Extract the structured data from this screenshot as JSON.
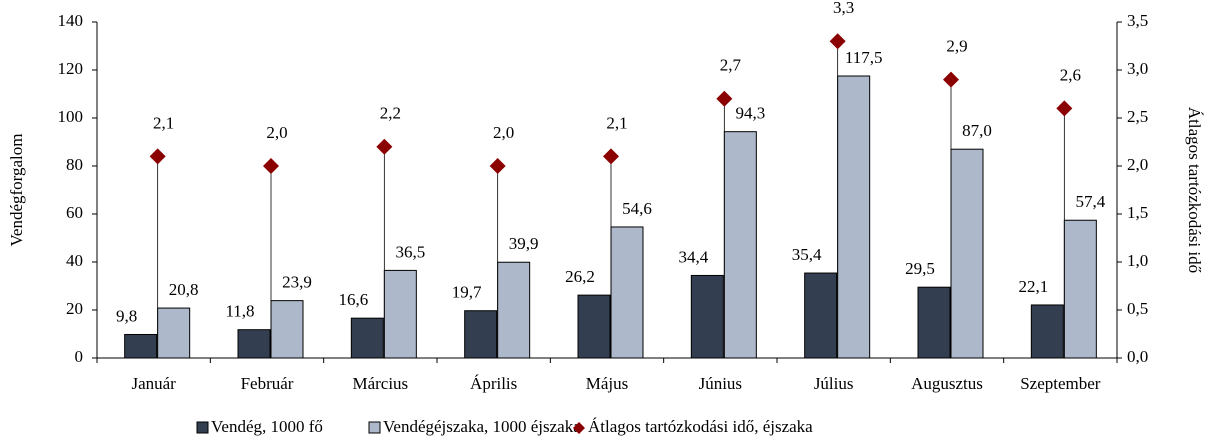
{
  "chart_data": {
    "type": "bar",
    "categories": [
      "Január",
      "Február",
      "Március",
      "Április",
      "Május",
      "Június",
      "Július",
      "Augusztus",
      "Szeptember"
    ],
    "series": [
      {
        "name": "Vendég, 1000 fő",
        "color": "#333f50",
        "values": [
          9.8,
          11.8,
          16.6,
          19.7,
          26.2,
          34.4,
          35.4,
          29.5,
          22.1
        ],
        "value_labels": [
          "9,8",
          "11,8",
          "16,6",
          "19,7",
          "26,2",
          "34,4",
          "35,4",
          "29,5",
          "22,1"
        ]
      },
      {
        "name": "Vendégéjszaka, 1000 éjszaka",
        "color": "#adb9ca",
        "values": [
          20.8,
          23.9,
          36.5,
          39.9,
          54.6,
          94.3,
          117.5,
          87.0,
          57.4
        ],
        "value_labels": [
          "20,8",
          "23,9",
          "36,5",
          "39,9",
          "54,6",
          "94,3",
          "117,5",
          "87,0",
          "57,4"
        ]
      },
      {
        "name": "Átlagos tartózkodási idő, éjszaka",
        "color": "#8b0000",
        "axis": "y2",
        "values": [
          2.1,
          2.0,
          2.2,
          2.0,
          2.1,
          2.7,
          3.3,
          2.9,
          2.6
        ],
        "value_labels": [
          "2,1",
          "2,0",
          "2,2",
          "2,0",
          "2,1",
          "2,7",
          "3,3",
          "2,9",
          "2,6"
        ]
      }
    ],
    "ylabel": "Vendégforgalom",
    "y2label": "Átlagos tartózkodási idő",
    "ylim": [
      0,
      140
    ],
    "yticks": [
      0,
      20,
      40,
      60,
      80,
      100,
      120,
      140
    ],
    "y2lim": [
      0,
      3.5
    ],
    "y2ticks": [
      {
        "value": 0,
        "label": "0,0"
      },
      {
        "value": 0.5,
        "label": "0,5"
      },
      {
        "value": 1,
        "label": "1,0"
      },
      {
        "value": 1.5,
        "label": "1,5"
      },
      {
        "value": 2,
        "label": "2,0"
      },
      {
        "value": 2.5,
        "label": "2,5"
      },
      {
        "value": 3,
        "label": "3,0"
      },
      {
        "value": 3.5,
        "label": "3,5"
      }
    ],
    "legend": "bottom"
  }
}
